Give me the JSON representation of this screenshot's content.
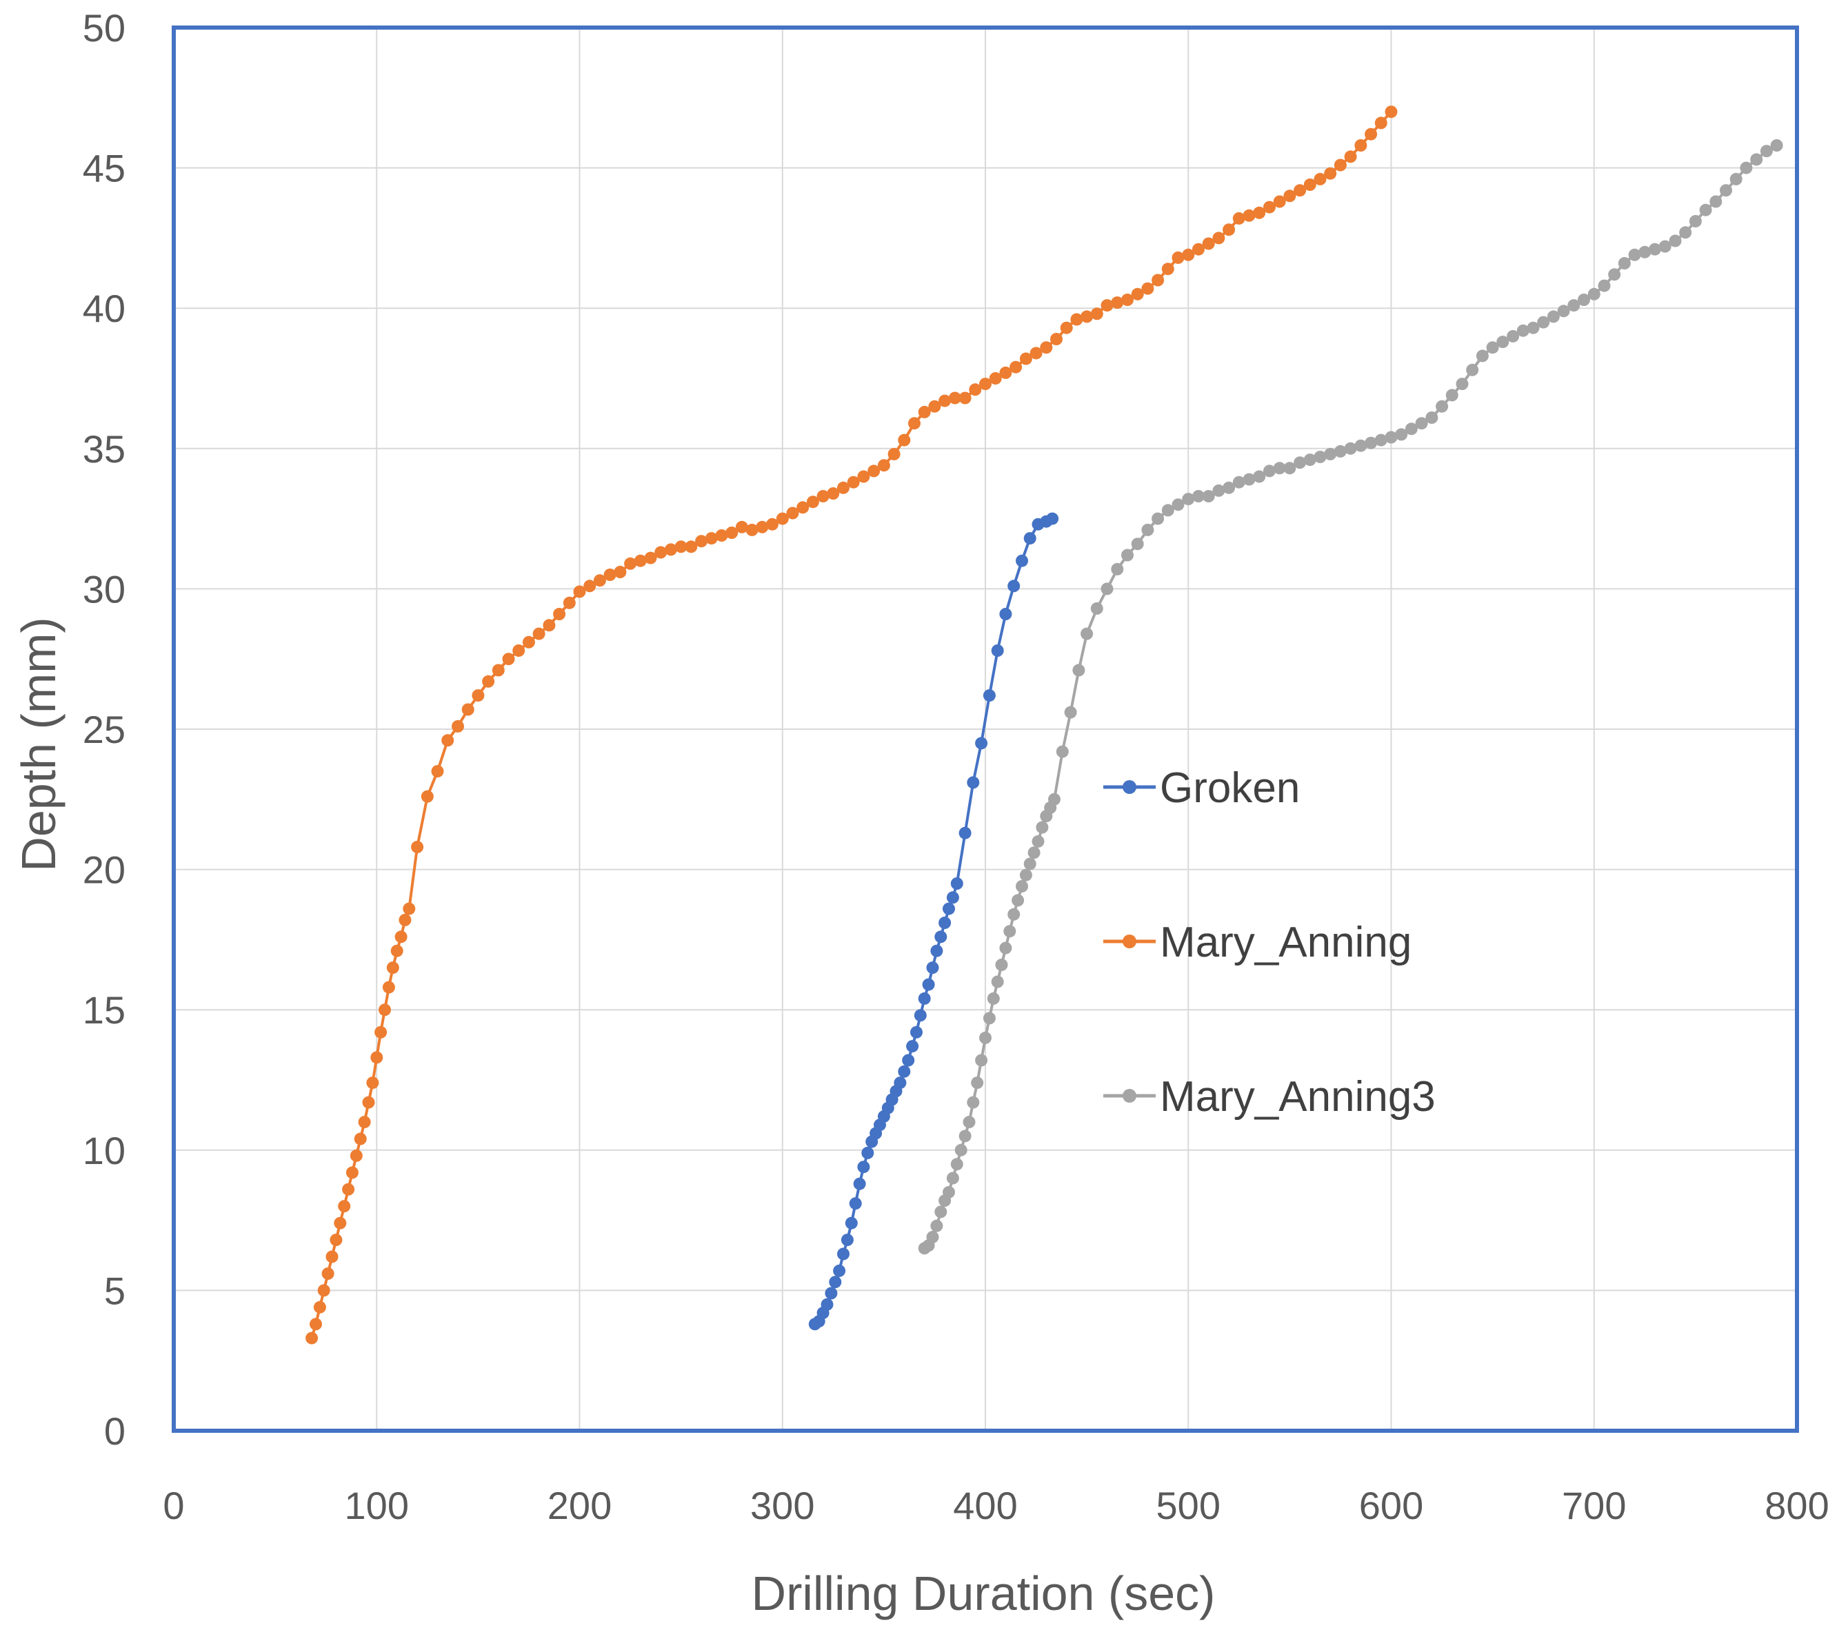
{
  "chart_data": {
    "type": "line",
    "title": "",
    "xlabel": "Drilling Duration (sec)",
    "ylabel": "Depth (mm)",
    "xlim": [
      0,
      800
    ],
    "ylim": [
      0,
      50
    ],
    "xticks": [
      0,
      100,
      200,
      300,
      400,
      500,
      600,
      700,
      800
    ],
    "yticks": [
      0,
      5,
      10,
      15,
      20,
      25,
      30,
      35,
      40,
      45,
      50
    ],
    "grid": true,
    "legend_position": "center-right",
    "frame_color": "#4472c4",
    "series": [
      {
        "name": "Groken",
        "color": "#4472c4",
        "x": [
          316,
          318,
          320,
          322,
          324,
          326,
          328,
          330,
          332,
          334,
          336,
          338,
          340,
          342,
          344,
          346,
          348,
          350,
          352,
          354,
          356,
          358,
          360,
          362,
          364,
          366,
          368,
          370,
          372,
          374,
          376,
          378,
          380,
          382,
          384,
          386,
          390,
          394,
          398,
          402,
          406,
          410,
          414,
          418,
          422,
          426,
          430,
          433
        ],
        "y": [
          3.8,
          3.9,
          4.2,
          4.5,
          4.9,
          5.3,
          5.7,
          6.3,
          6.8,
          7.4,
          8.1,
          8.8,
          9.4,
          9.9,
          10.3,
          10.6,
          10.9,
          11.2,
          11.5,
          11.8,
          12.1,
          12.4,
          12.8,
          13.2,
          13.7,
          14.2,
          14.8,
          15.4,
          15.9,
          16.5,
          17.1,
          17.6,
          18.1,
          18.6,
          19.0,
          19.5,
          21.3,
          23.1,
          24.5,
          26.2,
          27.8,
          29.1,
          30.1,
          31.0,
          31.8,
          32.3,
          32.4,
          32.5
        ]
      },
      {
        "name": "Mary_Anning",
        "color": "#ed7d31",
        "x": [
          68,
          70,
          72,
          74,
          76,
          78,
          80,
          82,
          84,
          86,
          88,
          90,
          92,
          94,
          96,
          98,
          100,
          102,
          104,
          106,
          108,
          110,
          112,
          114,
          116,
          120,
          125,
          130,
          135,
          140,
          145,
          150,
          155,
          160,
          165,
          170,
          175,
          180,
          185,
          190,
          195,
          200,
          205,
          210,
          215,
          220,
          225,
          230,
          235,
          240,
          245,
          250,
          255,
          260,
          265,
          270,
          275,
          280,
          285,
          290,
          295,
          300,
          305,
          310,
          315,
          320,
          325,
          330,
          335,
          340,
          345,
          350,
          355,
          360,
          365,
          370,
          375,
          380,
          385,
          390,
          395,
          400,
          405,
          410,
          415,
          420,
          425,
          430,
          435,
          440,
          445,
          450,
          455,
          460,
          465,
          470,
          475,
          480,
          485,
          490,
          495,
          500,
          505,
          510,
          515,
          520,
          525,
          530,
          535,
          540,
          545,
          550,
          555,
          560,
          565,
          570,
          575,
          580,
          585,
          590,
          595,
          600
        ],
        "y": [
          3.3,
          3.8,
          4.4,
          5.0,
          5.6,
          6.2,
          6.8,
          7.4,
          8.0,
          8.6,
          9.2,
          9.8,
          10.4,
          11.0,
          11.7,
          12.4,
          13.3,
          14.2,
          15.0,
          15.8,
          16.5,
          17.1,
          17.6,
          18.2,
          18.6,
          20.8,
          22.6,
          23.5,
          24.6,
          25.1,
          25.7,
          26.2,
          26.7,
          27.1,
          27.5,
          27.8,
          28.1,
          28.4,
          28.7,
          29.1,
          29.5,
          29.9,
          30.1,
          30.3,
          30.5,
          30.6,
          30.9,
          31.0,
          31.1,
          31.3,
          31.4,
          31.5,
          31.5,
          31.7,
          31.8,
          31.9,
          32.0,
          32.2,
          32.1,
          32.2,
          32.3,
          32.5,
          32.7,
          32.9,
          33.1,
          33.3,
          33.4,
          33.6,
          33.8,
          34.0,
          34.2,
          34.4,
          34.8,
          35.3,
          35.9,
          36.3,
          36.5,
          36.7,
          36.8,
          36.8,
          37.1,
          37.3,
          37.5,
          37.7,
          37.9,
          38.2,
          38.4,
          38.6,
          38.9,
          39.3,
          39.6,
          39.7,
          39.8,
          40.1,
          40.2,
          40.3,
          40.5,
          40.7,
          41.0,
          41.4,
          41.8,
          41.9,
          42.1,
          42.3,
          42.5,
          42.8,
          43.2,
          43.3,
          43.4,
          43.6,
          43.8,
          44.0,
          44.2,
          44.4,
          44.6,
          44.8,
          45.1,
          45.4,
          45.8,
          46.2,
          46.6,
          47.0
        ]
      },
      {
        "name": "Mary_Anning3",
        "color": "#a5a5a5",
        "x": [
          370,
          372,
          374,
          376,
          378,
          380,
          382,
          384,
          386,
          388,
          390,
          392,
          394,
          396,
          398,
          400,
          402,
          404,
          406,
          408,
          410,
          412,
          414,
          416,
          418,
          420,
          422,
          424,
          426,
          428,
          430,
          432,
          434,
          438,
          442,
          446,
          450,
          455,
          460,
          465,
          470,
          475,
          480,
          485,
          490,
          495,
          500,
          505,
          510,
          515,
          520,
          525,
          530,
          535,
          540,
          545,
          550,
          555,
          560,
          565,
          570,
          575,
          580,
          585,
          590,
          595,
          600,
          605,
          610,
          615,
          620,
          625,
          630,
          635,
          640,
          645,
          650,
          655,
          660,
          665,
          670,
          675,
          680,
          685,
          690,
          695,
          700,
          705,
          710,
          715,
          720,
          725,
          730,
          735,
          740,
          745,
          750,
          755,
          760,
          765,
          770,
          775,
          780,
          785,
          790
        ],
        "y": [
          6.5,
          6.6,
          6.9,
          7.3,
          7.8,
          8.2,
          8.5,
          9.0,
          9.5,
          10.0,
          10.5,
          11.0,
          11.7,
          12.4,
          13.2,
          14.0,
          14.7,
          15.4,
          16.0,
          16.6,
          17.2,
          17.8,
          18.4,
          18.9,
          19.4,
          19.8,
          20.2,
          20.6,
          21.0,
          21.5,
          21.9,
          22.2,
          22.5,
          24.2,
          25.6,
          27.1,
          28.4,
          29.3,
          30.0,
          30.7,
          31.2,
          31.6,
          32.1,
          32.5,
          32.8,
          33.0,
          33.2,
          33.3,
          33.3,
          33.5,
          33.6,
          33.8,
          33.9,
          34.0,
          34.2,
          34.3,
          34.3,
          34.5,
          34.6,
          34.7,
          34.8,
          34.9,
          35.0,
          35.1,
          35.2,
          35.3,
          35.4,
          35.5,
          35.7,
          35.9,
          36.1,
          36.5,
          36.9,
          37.3,
          37.8,
          38.3,
          38.6,
          38.8,
          39.0,
          39.2,
          39.3,
          39.5,
          39.7,
          39.9,
          40.1,
          40.3,
          40.5,
          40.8,
          41.2,
          41.6,
          41.9,
          42.0,
          42.1,
          42.2,
          42.4,
          42.7,
          43.1,
          43.5,
          43.8,
          44.2,
          44.6,
          45.0,
          45.3,
          45.6,
          45.8
        ]
      }
    ]
  }
}
